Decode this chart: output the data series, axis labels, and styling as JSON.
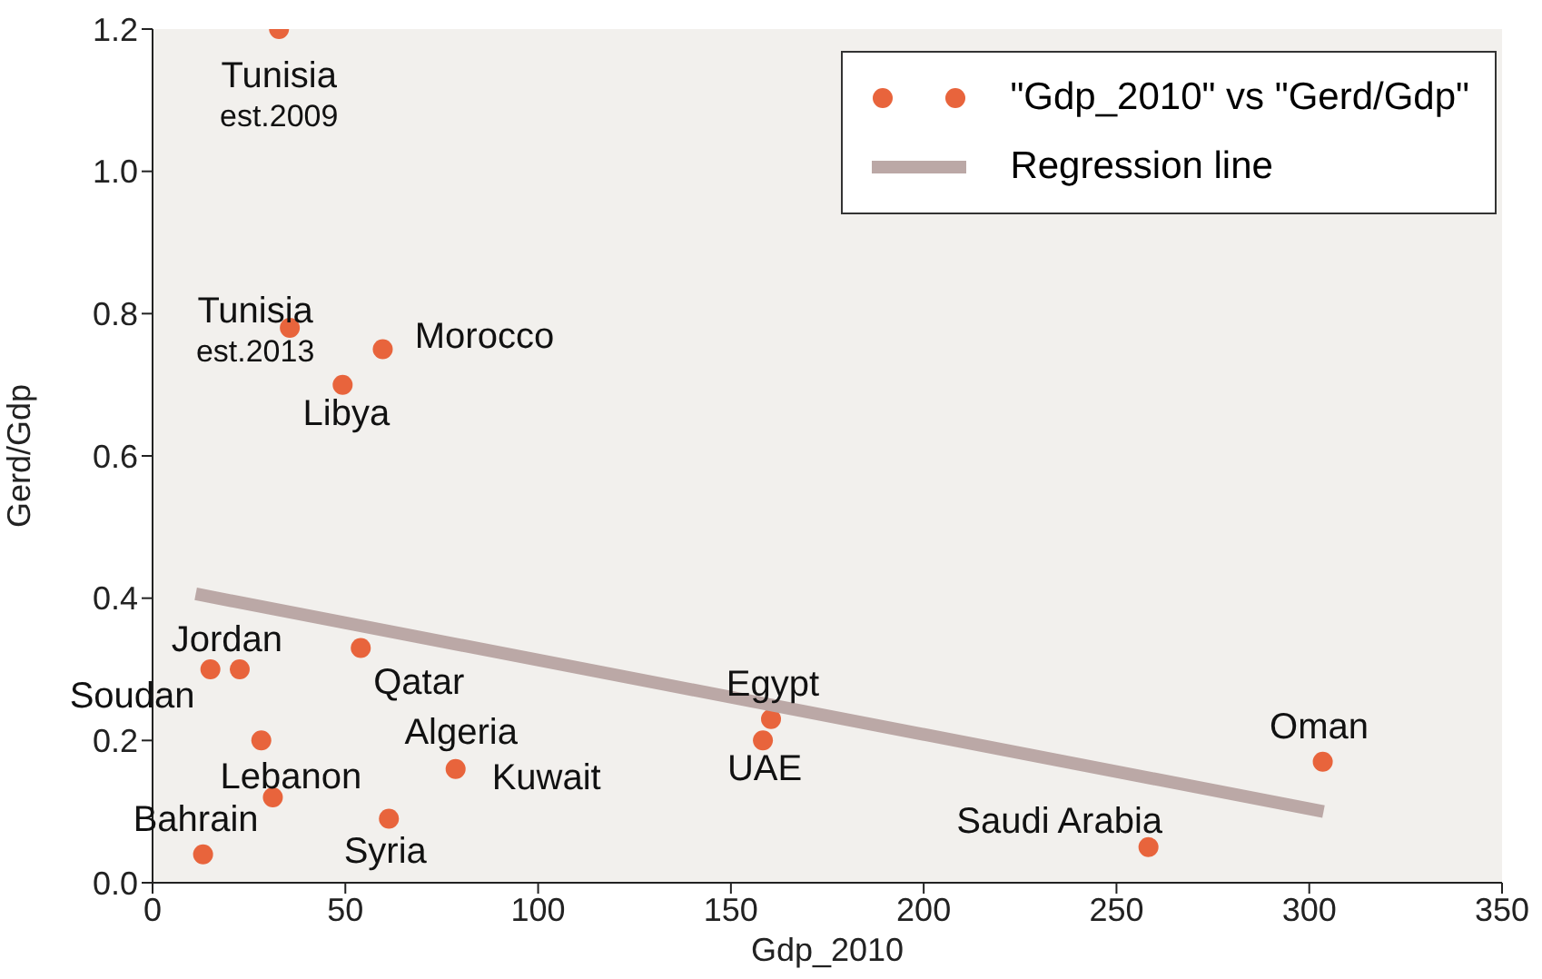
{
  "chart_data": {
    "type": "scatter",
    "xlabel": "Gdp_2010",
    "ylabel": "Gerd/Gdp",
    "xlim": [
      0,
      350
    ],
    "xticks": [
      0,
      50,
      100,
      150,
      200,
      250,
      300,
      350
    ],
    "ylim": [
      0,
      1.2
    ],
    "yticks": [
      {
        "value": 0,
        "label": "0.0"
      },
      {
        "value": 0.2,
        "label": "0.2"
      },
      {
        "value": 0.4,
        "label": "0.4"
      },
      {
        "value": 0.6,
        "label": "0.6"
      },
      {
        "value": 0.8,
        "label": "0.8"
      },
      {
        "value": 1.0,
        "label": "1.0"
      },
      {
        "value": 1.2,
        "label": "1.2"
      }
    ],
    "grid": false,
    "legend": "top right",
    "marker": "circle",
    "series": [
      {
        "name": "\"Gdp_2010\" vs \"Gerd/Gdp\"",
        "type": "scatter",
        "color": "#e8643c",
        "x": [
          32.8,
          35.6,
          59.7,
          49.3,
          15,
          22.6,
          54,
          28.2,
          31.2,
          78.6,
          61.3,
          13.1,
          160.4,
          158.3,
          303.5,
          258.3
        ],
        "values": [
          1.2,
          0.78,
          0.75,
          0.7,
          0.3,
          0.3,
          0.33,
          0.2,
          0.12,
          0.16,
          0.09,
          0.04,
          0.23,
          0.2,
          0.17,
          0.05
        ]
      },
      {
        "name": "Regression line",
        "type": "line",
        "marker": "none",
        "color": "#bba8a6",
        "x": [
          11.2,
          303.7
        ],
        "values": [
          0.406,
          0.1
        ]
      }
    ],
    "annotations": [
      {
        "text": "Tunisia\nest.2009",
        "x": 32.8,
        "y": 1.2
      },
      {
        "text": "Tunisia\nest.2013",
        "x": 35.6,
        "y": 0.78
      },
      {
        "text": "Morocco",
        "x": 59.7,
        "y": 0.75
      },
      {
        "text": "Libya",
        "x": 49.3,
        "y": 0.7
      },
      {
        "text": "Soudan",
        "x": 15,
        "y": 0.3
      },
      {
        "text": "Jordan",
        "x": 22.6,
        "y": 0.3
      },
      {
        "text": "Qatar",
        "x": 54,
        "y": 0.33
      },
      {
        "text": "Algeria",
        "x": 78.6,
        "y": 0.16
      },
      {
        "text": "Lebanon",
        "x": 31.2,
        "y": 0.12
      },
      {
        "text": "Kuwait",
        "x": 78.6,
        "y": 0.16
      },
      {
        "text": "Syria",
        "x": 61.3,
        "y": 0.09
      },
      {
        "text": "Bahrain",
        "x": 13.1,
        "y": 0.04
      },
      {
        "text": "Egypt",
        "x": 160.4,
        "y": 0.23
      },
      {
        "text": "UAE",
        "x": 158.3,
        "y": 0.2
      },
      {
        "text": "Oman",
        "x": 303.5,
        "y": 0.17
      },
      {
        "text": "Saudi Arabia",
        "x": 258.3,
        "y": 0.05
      }
    ]
  }
}
